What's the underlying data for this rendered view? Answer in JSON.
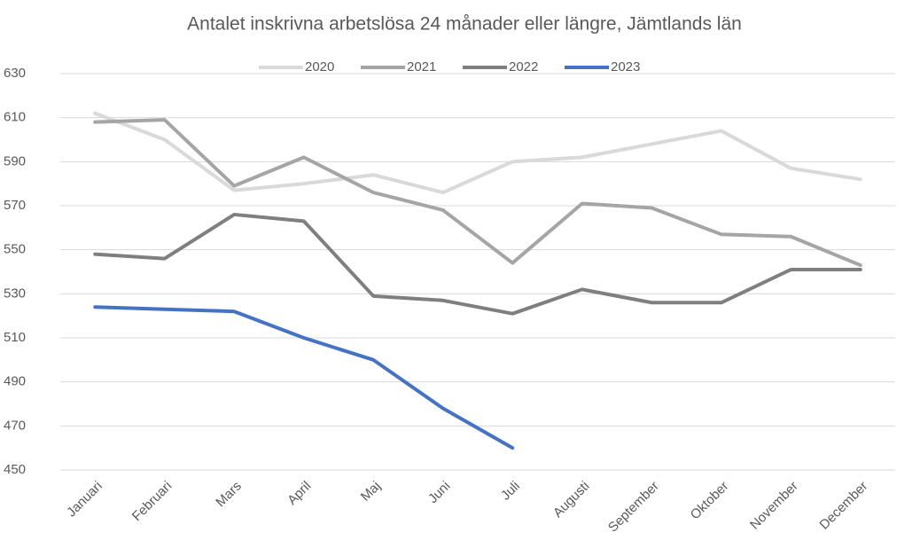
{
  "chart_data": {
    "type": "line",
    "title": "Antalet inskrivna arbetslösa 24 månader eller längre, Jämtlands län",
    "categories": [
      "Januari",
      "Februari",
      "Mars",
      "April",
      "Maj",
      "Juni",
      "Juli",
      "Augusti",
      "September",
      "Oktober",
      "November",
      "December"
    ],
    "series": [
      {
        "name": "2020",
        "color": "#d9d9d9",
        "values": [
          612,
          600,
          577,
          580,
          584,
          576,
          590,
          592,
          598,
          604,
          587,
          582
        ]
      },
      {
        "name": "2021",
        "color": "#a5a5a5",
        "values": [
          608,
          609,
          579,
          592,
          576,
          568,
          544,
          571,
          569,
          557,
          556,
          543
        ]
      },
      {
        "name": "2022",
        "color": "#7f7f7f",
        "values": [
          548,
          546,
          566,
          563,
          529,
          527,
          521,
          532,
          526,
          526,
          541,
          541
        ]
      },
      {
        "name": "2023",
        "color": "#4472c4",
        "values": [
          524,
          523,
          522,
          510,
          500,
          478,
          460,
          null,
          null,
          null,
          null,
          null
        ]
      }
    ],
    "ylim": [
      450,
      630
    ],
    "yticks": [
      450,
      470,
      490,
      510,
      530,
      550,
      570,
      590,
      610,
      630
    ],
    "grid": true,
    "legend": "top"
  }
}
